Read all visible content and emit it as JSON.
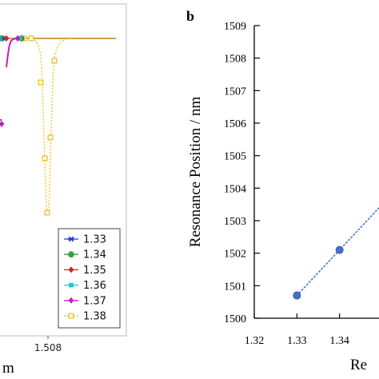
{
  "chart_data": [
    {
      "type": "line",
      "panel_label": "",
      "xlabel": "m",
      "ylabel": "",
      "x_tick_labels": [
        "1.508"
      ],
      "legend_position": "bottom-right",
      "grid": false,
      "series": [
        {
          "name": "1.33",
          "color": "#1f3fd6",
          "marker": "asterisk"
        },
        {
          "name": "1.34",
          "color": "#3aa13a",
          "marker": "circle"
        },
        {
          "name": "1.35",
          "color": "#d62020",
          "marker": "diamond"
        },
        {
          "name": "1.36",
          "color": "#20c8c8",
          "marker": "square"
        },
        {
          "name": "1.37",
          "color": "#c020c0",
          "marker": "diamond"
        },
        {
          "name": "1.38",
          "color": "#f0c020",
          "marker": "square-open"
        }
      ]
    },
    {
      "type": "scatter",
      "panel_label": "b",
      "xlabel": "Re",
      "ylabel": "Resonance Position / nm",
      "xlim": [
        1.32,
        1.35
      ],
      "ylim": [
        1500,
        1509
      ],
      "x_ticks": [
        "1.32",
        "1.33",
        "1.34"
      ],
      "y_ticks": [
        "1500",
        "1501",
        "1502",
        "1503",
        "1504",
        "1505",
        "1506",
        "1507",
        "1508",
        "1509"
      ],
      "grid": false,
      "trend_line": "dotted",
      "color": "#4472c4",
      "points": [
        {
          "x": 1.33,
          "y": 1500.7
        },
        {
          "x": 1.34,
          "y": 1502.1
        }
      ]
    }
  ]
}
